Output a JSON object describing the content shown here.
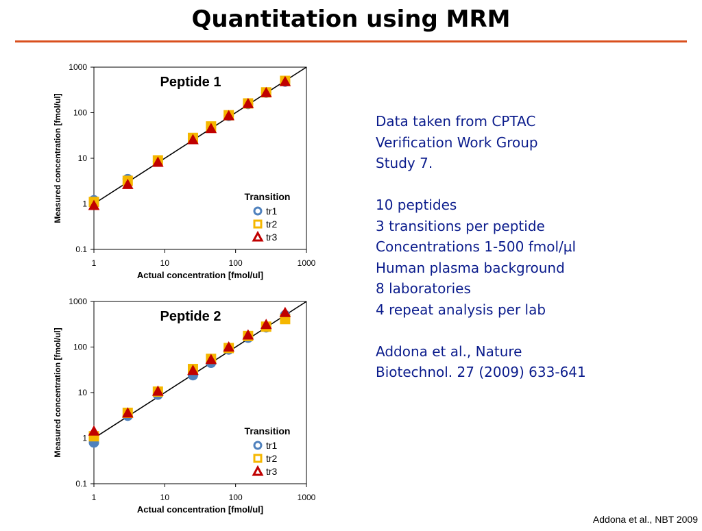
{
  "slide": {
    "title": "Quantitation using MRM",
    "footer_citation": "Addona et al., NBT 2009",
    "accent_color": "#d9501e",
    "info_text_color": "#0b1c8c"
  },
  "info": {
    "lines": [
      "Data taken from CPTAC",
      "Verification Work Group",
      "Study 7.",
      "",
      "10 peptides",
      "3 transitions per peptide",
      "Concentrations 1-500 fmol/µl",
      "Human plasma background",
      "8 laboratories",
      "4 repeat analysis per lab",
      "",
      "Addona et al., Nature",
      "Biotechnol. 27 (2009) 633-641"
    ]
  },
  "chart_data": [
    {
      "type": "scatter",
      "title": "Peptide 1",
      "xlabel": "Actual concentration [fmol/ul]",
      "ylabel": "Measured concentration [fmol/ul]",
      "xscale": "log",
      "yscale": "log",
      "xlim": [
        1,
        1000
      ],
      "ylim": [
        0.1,
        1000
      ],
      "xticks": [
        "1",
        "10",
        "100",
        "1000"
      ],
      "yticks": [
        "0.1",
        "1",
        "10",
        "100",
        "1000"
      ],
      "identity_line": true,
      "legend": {
        "title": "Transition",
        "position": "lower-right"
      },
      "x": [
        1,
        3,
        8,
        25,
        45,
        80,
        150,
        270,
        500
      ],
      "series": [
        {
          "name": "tr1",
          "marker": "circle",
          "color": "#4f81bd",
          "values": [
            1.2,
            3.5,
            8.5,
            27,
            48,
            85,
            155,
            275,
            480
          ]
        },
        {
          "name": "tr2",
          "marker": "square",
          "color": "#f5b700",
          "values": [
            1.1,
            3.2,
            9,
            28,
            50,
            88,
            160,
            280,
            500
          ]
        },
        {
          "name": "tr3",
          "marker": "triangle",
          "color": "#c00000",
          "values": [
            0.9,
            2.6,
            8,
            25,
            44,
            84,
            155,
            270,
            470
          ]
        }
      ]
    },
    {
      "type": "scatter",
      "title": "Peptide 2",
      "xlabel": "Actual concentration [fmol/ul]",
      "ylabel": "Measured concentration [fmol/ul]",
      "xscale": "log",
      "yscale": "log",
      "xlim": [
        1,
        1000
      ],
      "ylim": [
        0.1,
        1000
      ],
      "xticks": [
        "1",
        "10",
        "100",
        "1000"
      ],
      "yticks": [
        "0.1",
        "1",
        "10",
        "100",
        "1000"
      ],
      "identity_line": true,
      "legend": {
        "title": "Transition",
        "position": "lower-right"
      },
      "x": [
        1,
        3,
        8,
        25,
        45,
        80,
        150,
        270,
        500
      ],
      "series": [
        {
          "name": "tr1",
          "marker": "circle",
          "color": "#4f81bd",
          "values": [
            0.8,
            3.1,
            9,
            24,
            45,
            88,
            160,
            270,
            500
          ]
        },
        {
          "name": "tr2",
          "marker": "square",
          "color": "#f5b700",
          "values": [
            1.1,
            3.6,
            10.5,
            33,
            55,
            95,
            175,
            280,
            410
          ]
        },
        {
          "name": "tr3",
          "marker": "triangle",
          "color": "#c00000",
          "values": [
            1.4,
            3.5,
            10.5,
            30,
            52,
            98,
            180,
            305,
            560
          ]
        }
      ]
    }
  ]
}
